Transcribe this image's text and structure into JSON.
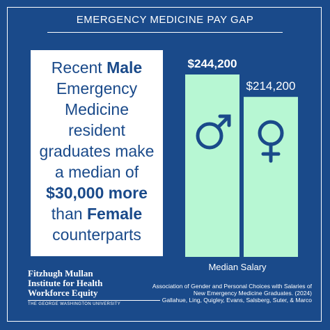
{
  "header": {
    "title": "EMERGENCY MEDICINE PAY GAP"
  },
  "message": {
    "p1": "Recent ",
    "p2": "Male",
    "p3": " Emergency Medicine resident graduates make a median of ",
    "p4": "$30,000 more",
    "p5": " than ",
    "p6": "Female",
    "p7": " counterparts"
  },
  "chart_data": {
    "type": "bar",
    "categories": [
      "Male",
      "Female"
    ],
    "values": [
      244200,
      214200
    ],
    "labels": [
      "$244,200",
      "$214,200"
    ],
    "icons": [
      "male-symbol-icon",
      "female-symbol-icon"
    ],
    "xlabel": "Median Salary",
    "bar_color": "#b7f7d3"
  },
  "footer": {
    "org_line1": "Fitzhugh Mullan",
    "org_line2": "Institute for Health",
    "org_line3": "Workforce Equity",
    "org_sub": "THE GEORGE WASHINGTON UNIVERSITY",
    "citation_line1": "Association of Gender and Personal Choices with Salaries of",
    "citation_line2": "New Emergency Medicine Graduates. (2024)",
    "citation_line3": "Gallahue, Ling, Quigley, Evans, Salsberg, Suter, & Marco"
  },
  "colors": {
    "background": "#1a4a8a",
    "bar": "#b7f7d3",
    "text": "#ffffff"
  }
}
